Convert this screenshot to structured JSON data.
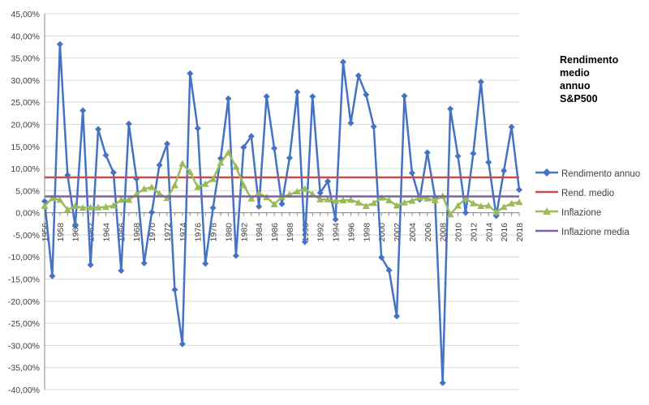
{
  "chart_data": {
    "type": "line",
    "title_lines": [
      "Rendimento",
      "medio",
      "annuo",
      "S&P500"
    ],
    "ylim": [
      -40,
      45
    ],
    "y_ticks": [
      "45,00%",
      "40,00%",
      "35,00%",
      "30,00%",
      "25,00%",
      "20,00%",
      "15,00%",
      "10,00%",
      "5,00%",
      "0,00%",
      "-5,00%",
      "-10,00%",
      "-15,00%",
      "-20,00%",
      "-25,00%",
      "-30,00%",
      "-35,00%",
      "-40,00%"
    ],
    "y_tick_values": [
      45,
      40,
      35,
      30,
      25,
      20,
      15,
      10,
      5,
      0,
      -5,
      -10,
      -15,
      -20,
      -25,
      -30,
      -35,
      -40
    ],
    "x_tick_labels": [
      "1956",
      "1958",
      "1960",
      "1962",
      "1964",
      "1966",
      "1968",
      "1970",
      "1972",
      "1974",
      "1976",
      "1978",
      "1980",
      "1982",
      "1984",
      "1986",
      "1988",
      "1990",
      "1992",
      "1994",
      "1996",
      "1998",
      "2000",
      "2002",
      "2004",
      "2006",
      "2008",
      "2010",
      "2012",
      "2014",
      "2016",
      "2018"
    ],
    "x": [
      1956,
      1957,
      1958,
      1959,
      1960,
      1961,
      1962,
      1963,
      1964,
      1965,
      1966,
      1967,
      1968,
      1969,
      1970,
      1971,
      1972,
      1973,
      1974,
      1975,
      1976,
      1977,
      1978,
      1979,
      1980,
      1981,
      1982,
      1983,
      1984,
      1985,
      1986,
      1987,
      1988,
      1989,
      1990,
      1991,
      1992,
      1993,
      1994,
      1995,
      1996,
      1997,
      1998,
      1999,
      2000,
      2001,
      2002,
      2003,
      2004,
      2005,
      2006,
      2007,
      2008,
      2009,
      2010,
      2011,
      2012,
      2013,
      2014,
      2015,
      2016,
      2017,
      2018
    ],
    "grid": true,
    "legend_position": "right",
    "series": [
      {
        "name": "Rendimento annuo",
        "color": "#4472c4",
        "marker": "diamond",
        "values": [
          2.6,
          -14.3,
          38.1,
          8.5,
          -3.0,
          23.1,
          -11.8,
          18.9,
          13.0,
          9.1,
          -13.1,
          20.1,
          7.7,
          -11.4,
          0.1,
          10.8,
          15.6,
          -17.4,
          -29.7,
          31.5,
          19.1,
          -11.5,
          1.1,
          12.3,
          25.8,
          -9.7,
          14.8,
          17.3,
          1.4,
          26.3,
          14.6,
          2.0,
          12.4,
          27.3,
          -6.6,
          26.3,
          4.5,
          7.1,
          -1.5,
          34.1,
          20.3,
          31.0,
          26.7,
          19.5,
          -10.1,
          -13.0,
          -23.4,
          26.4,
          9.0,
          3.0,
          13.6,
          3.5,
          -38.5,
          23.5,
          12.8,
          0.0,
          13.4,
          29.6,
          11.4,
          -0.7,
          9.5,
          19.4,
          5.2
        ]
      },
      {
        "name": "Rend. medio",
        "color": "#c0504d",
        "marker": "none",
        "values": [
          8.0,
          8.0,
          8.0,
          8.0,
          8.0,
          8.0,
          8.0,
          8.0,
          8.0,
          8.0,
          8.0,
          8.0,
          8.0,
          8.0,
          8.0,
          8.0,
          8.0,
          8.0,
          8.0,
          8.0,
          8.0,
          8.0,
          8.0,
          8.0,
          8.0,
          8.0,
          8.0,
          8.0,
          8.0,
          8.0,
          8.0,
          8.0,
          8.0,
          8.0,
          8.0,
          8.0,
          8.0,
          8.0,
          8.0,
          8.0,
          8.0,
          8.0,
          8.0,
          8.0,
          8.0,
          8.0,
          8.0,
          8.0,
          8.0,
          8.0,
          8.0,
          8.0,
          8.0,
          8.0,
          8.0,
          8.0,
          8.0,
          8.0,
          8.0,
          8.0,
          8.0,
          8.0,
          8.0
        ]
      },
      {
        "name": "Inflazione",
        "color": "#9bbb59",
        "marker": "triangle",
        "values": [
          1.5,
          3.3,
          2.9,
          0.7,
          1.5,
          1.1,
          1.2,
          1.2,
          1.3,
          1.6,
          2.9,
          2.9,
          4.2,
          5.4,
          5.8,
          4.3,
          3.3,
          6.2,
          11.1,
          9.2,
          5.8,
          6.5,
          7.6,
          11.3,
          13.6,
          10.4,
          6.2,
          3.2,
          4.4,
          3.5,
          1.9,
          3.6,
          4.1,
          4.8,
          5.4,
          4.2,
          3.0,
          3.0,
          2.6,
          2.8,
          2.9,
          2.3,
          1.5,
          2.2,
          3.4,
          2.8,
          1.6,
          2.3,
          2.7,
          3.4,
          3.2,
          2.8,
          3.8,
          -0.4,
          1.6,
          3.2,
          2.1,
          1.5,
          1.6,
          0.1,
          1.3,
          2.1,
          2.4
        ]
      },
      {
        "name": "Inflazione media",
        "color": "#7f5fa8",
        "marker": "none",
        "values": [
          3.7,
          3.7,
          3.7,
          3.7,
          3.7,
          3.7,
          3.7,
          3.7,
          3.7,
          3.7,
          3.7,
          3.7,
          3.7,
          3.7,
          3.7,
          3.7,
          3.7,
          3.7,
          3.7,
          3.7,
          3.7,
          3.7,
          3.7,
          3.7,
          3.7,
          3.7,
          3.7,
          3.7,
          3.7,
          3.7,
          3.7,
          3.7,
          3.7,
          3.7,
          3.7,
          3.7,
          3.7,
          3.7,
          3.7,
          3.7,
          3.7,
          3.7,
          3.7,
          3.7,
          3.7,
          3.7,
          3.7,
          3.7,
          3.7,
          3.7,
          3.7,
          3.7,
          3.7,
          3.7,
          3.7,
          3.7,
          3.7,
          3.7,
          3.7,
          3.7,
          3.7,
          3.7,
          3.7
        ]
      }
    ]
  }
}
